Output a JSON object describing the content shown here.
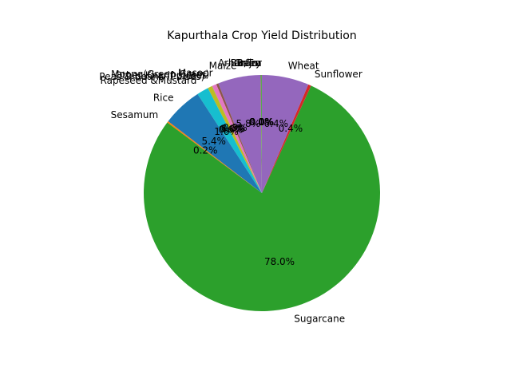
{
  "chart_data": {
    "type": "pie",
    "title": "Kapurthala Crop Yield Distribution",
    "start_angle_deg": 90,
    "direction": "counterclockwise",
    "slices": [
      {
        "label": "Arhar/Tur",
        "pct_label": "0.0%",
        "value": 0.02,
        "color": "#1f77b4"
      },
      {
        "label": "Bajra",
        "pct_label": "0.0%",
        "value": 0.02,
        "color": "#ff7f0e"
      },
      {
        "label": "Barley",
        "pct_label": "0.1%",
        "value": 0.12,
        "color": "#2ca02c"
      },
      {
        "label": "Gram",
        "pct_label": "0.0%",
        "value": 0.03,
        "color": "#d62728"
      },
      {
        "label": "Maize",
        "pct_label": "5.8%",
        "value": 5.8,
        "color": "#9467bd"
      },
      {
        "label": "Masoor",
        "pct_label": "0.3%",
        "value": 0.3,
        "color": "#8c564b"
      },
      {
        "label": "Moong(Green Gram)",
        "pct_label": "0.6%",
        "value": 0.6,
        "color": "#e377c2"
      },
      {
        "label": "Other Kharif pulses",
        "pct_label": "0.0%",
        "value": 0.03,
        "color": "#7f7f7f"
      },
      {
        "label": "Peas & beans (Pulses)",
        "pct_label": "0.6%",
        "value": 0.6,
        "color": "#bcbd22"
      },
      {
        "label": "Rapeseed &Mustard",
        "pct_label": "1.6%",
        "value": 1.6,
        "color": "#17becf"
      },
      {
        "label": "Rice",
        "pct_label": "5.4%",
        "value": 5.4,
        "color": "#1f77b4"
      },
      {
        "label": "Sesamum",
        "pct_label": "0.2%",
        "value": 0.2,
        "color": "#ff7f0e"
      },
      {
        "label": "Sugarcane",
        "pct_label": "78.0%",
        "value": 78.0,
        "color": "#2ca02c"
      },
      {
        "label": "Sunflower",
        "pct_label": "0.4%",
        "value": 0.4,
        "color": "#d62728"
      },
      {
        "label": "Wheat",
        "pct_label": "6.4%",
        "value": 6.4,
        "color": "#9467bd"
      }
    ]
  }
}
